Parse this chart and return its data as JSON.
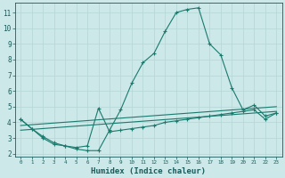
{
  "xlabel": "Humidex (Indice chaleur)",
  "bg_color": "#cce8e8",
  "grid_color": "#b8d8d8",
  "line_color": "#1a7a6e",
  "xlim": [
    -0.5,
    23.5
  ],
  "ylim": [
    1.8,
    11.6
  ],
  "yticks": [
    2,
    3,
    4,
    5,
    6,
    7,
    8,
    9,
    10,
    11
  ],
  "xticks": [
    0,
    1,
    2,
    3,
    4,
    5,
    6,
    7,
    8,
    9,
    10,
    11,
    12,
    13,
    14,
    15,
    16,
    17,
    18,
    19,
    20,
    21,
    22,
    23
  ],
  "line1_x": [
    0,
    1,
    2,
    3,
    4,
    5,
    6,
    7,
    8,
    9,
    10,
    11,
    12,
    13,
    14,
    15,
    16,
    17,
    18,
    19,
    20,
    21,
    22,
    23
  ],
  "line1_y": [
    4.2,
    3.6,
    3.0,
    2.6,
    2.5,
    2.3,
    2.2,
    2.2,
    3.5,
    4.8,
    6.5,
    7.8,
    8.4,
    9.8,
    11.0,
    11.2,
    11.3,
    9.0,
    8.3,
    6.2,
    4.8,
    5.1,
    4.4,
    4.6
  ],
  "line2_x": [
    0,
    1,
    2,
    3,
    4,
    5,
    6,
    7,
    8,
    9,
    10,
    11,
    12,
    13,
    14,
    15,
    16,
    17,
    18,
    19,
    20,
    21,
    22,
    23
  ],
  "line2_y": [
    4.2,
    3.6,
    3.1,
    2.7,
    2.5,
    2.4,
    2.5,
    4.9,
    3.4,
    3.5,
    3.6,
    3.7,
    3.8,
    4.0,
    4.1,
    4.2,
    4.3,
    4.4,
    4.5,
    4.6,
    4.7,
    4.8,
    4.2,
    4.6
  ],
  "line3_x": [
    0,
    23
  ],
  "line3_y": [
    3.8,
    5.0
  ],
  "line4_x": [
    0,
    23
  ],
  "line4_y": [
    3.5,
    4.7
  ]
}
